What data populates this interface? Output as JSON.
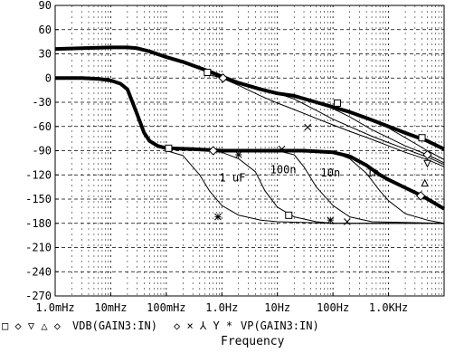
{
  "chart_data": {
    "type": "line",
    "xscale": "log",
    "xlim_hz": [
      0.001,
      10000
    ],
    "ylim": [
      -270,
      90
    ],
    "y_ticks": [
      90,
      60,
      30,
      0,
      -30,
      -60,
      -90,
      -120,
      -150,
      -180,
      -210,
      -240,
      -270
    ],
    "x_ticks": [
      {
        "value": 0.001,
        "label": "1.0mHz"
      },
      {
        "value": 0.01,
        "label": "10mHz"
      },
      {
        "value": 0.1,
        "label": "100mHz"
      },
      {
        "value": 1,
        "label": "1.0Hz"
      },
      {
        "value": 10,
        "label": "10Hz"
      },
      {
        "value": 100,
        "label": "100Hz"
      },
      {
        "value": 1000,
        "label": "1.0KHz"
      }
    ],
    "xlabel": "Frequency",
    "grid": true,
    "legend": {
      "marker_glyphs": [
        "□",
        "◇",
        "▽",
        "△",
        "◇"
      ],
      "vdb_label": "VDB(GAIN3:IN)",
      "vdb_marker_glyphs": [
        "◇",
        "×",
        "⅄",
        "Y",
        "*"
      ],
      "vp_label": "VP(GAIN3:IN)"
    },
    "annotations": [
      {
        "text": "1 uF",
        "x": 0.9,
        "y": -128
      },
      {
        "text": "100n",
        "x": 7.4,
        "y": -118
      },
      {
        "text": "10n",
        "x": 60,
        "y": -122
      },
      {
        "text": "1n",
        "x": 400,
        "y": -122
      }
    ],
    "series": [
      {
        "kind": "magnitude",
        "bold": true,
        "points": [
          [
            0.001,
            36
          ],
          [
            0.003,
            37
          ],
          [
            0.01,
            38
          ],
          [
            0.02,
            38
          ],
          [
            0.03,
            37
          ],
          [
            0.05,
            33
          ],
          [
            0.1,
            26
          ],
          [
            0.2,
            20
          ],
          [
            0.5,
            10
          ],
          [
            1,
            2
          ],
          [
            2,
            -6
          ],
          [
            5,
            -14
          ],
          [
            10,
            -19
          ],
          [
            20,
            -22
          ],
          [
            50,
            -30
          ],
          [
            100,
            -36
          ],
          [
            200,
            -42
          ],
          [
            500,
            -52
          ],
          [
            1000,
            -60
          ],
          [
            2000,
            -68
          ],
          [
            5000,
            -78
          ],
          [
            10000,
            -88
          ]
        ]
      },
      {
        "kind": "magnitude",
        "bold": false,
        "points": [
          [
            0.6,
            4
          ],
          [
            1,
            0
          ],
          [
            2,
            -9
          ],
          [
            5,
            -22
          ],
          [
            10,
            -31
          ],
          [
            20,
            -39
          ],
          [
            50,
            -50
          ],
          [
            100,
            -58
          ],
          [
            200,
            -66
          ],
          [
            500,
            -76
          ],
          [
            1000,
            -84
          ],
          [
            2000,
            -92
          ],
          [
            5000,
            -101
          ],
          [
            10000,
            -110
          ]
        ]
      },
      {
        "kind": "magnitude",
        "bold": false,
        "points": [
          [
            5,
            -15
          ],
          [
            10,
            -19
          ],
          [
            20,
            -26
          ],
          [
            50,
            -40
          ],
          [
            100,
            -51
          ],
          [
            200,
            -60
          ],
          [
            500,
            -72
          ],
          [
            1000,
            -80
          ],
          [
            2000,
            -88
          ],
          [
            5000,
            -98
          ],
          [
            10000,
            -107
          ]
        ]
      },
      {
        "kind": "magnitude",
        "bold": false,
        "points": [
          [
            20,
            -22
          ],
          [
            50,
            -30
          ],
          [
            100,
            -38
          ],
          [
            200,
            -48
          ],
          [
            500,
            -64
          ],
          [
            1000,
            -74
          ],
          [
            2000,
            -84
          ],
          [
            5000,
            -95
          ],
          [
            10000,
            -105
          ]
        ]
      },
      {
        "kind": "magnitude",
        "bold": false,
        "points": [
          [
            200,
            -42
          ],
          [
            500,
            -52
          ],
          [
            1000,
            -62
          ],
          [
            2000,
            -74
          ],
          [
            5000,
            -90
          ],
          [
            10000,
            -101
          ]
        ]
      },
      {
        "kind": "phase",
        "bold": true,
        "points": [
          [
            0.001,
            0
          ],
          [
            0.003,
            0
          ],
          [
            0.006,
            -1
          ],
          [
            0.01,
            -3
          ],
          [
            0.015,
            -7
          ],
          [
            0.02,
            -14
          ],
          [
            0.03,
            -45
          ],
          [
            0.04,
            -68
          ],
          [
            0.05,
            -78
          ],
          [
            0.07,
            -84
          ],
          [
            0.1,
            -87
          ],
          [
            0.3,
            -88
          ],
          [
            1,
            -90
          ],
          [
            3,
            -90
          ],
          [
            10,
            -90
          ],
          [
            30,
            -90
          ],
          [
            100,
            -92
          ],
          [
            200,
            -97
          ],
          [
            400,
            -108
          ],
          [
            700,
            -120
          ],
          [
            1000,
            -126
          ],
          [
            2000,
            -136
          ],
          [
            4000,
            -146
          ],
          [
            10000,
            -162
          ]
        ]
      },
      {
        "kind": "phase",
        "bold": false,
        "points": [
          [
            0.1,
            -90
          ],
          [
            0.2,
            -96
          ],
          [
            0.4,
            -120
          ],
          [
            0.6,
            -140
          ],
          [
            1,
            -158
          ],
          [
            2,
            -170
          ],
          [
            5,
            -176
          ],
          [
            10,
            -178
          ],
          [
            100,
            -180
          ],
          [
            10000,
            -180
          ]
        ]
      },
      {
        "kind": "phase",
        "bold": false,
        "points": [
          [
            0.5,
            -90
          ],
          [
            1,
            -92
          ],
          [
            2,
            -100
          ],
          [
            4,
            -116
          ],
          [
            6,
            -140
          ],
          [
            10,
            -160
          ],
          [
            20,
            -172
          ],
          [
            50,
            -178
          ],
          [
            100,
            -180
          ],
          [
            10000,
            -180
          ]
        ]
      },
      {
        "kind": "phase",
        "bold": false,
        "points": [
          [
            10,
            -90
          ],
          [
            20,
            -95
          ],
          [
            30,
            -110
          ],
          [
            50,
            -135
          ],
          [
            100,
            -158
          ],
          [
            200,
            -172
          ],
          [
            500,
            -178
          ],
          [
            10000,
            -180
          ]
        ]
      },
      {
        "kind": "phase",
        "bold": false,
        "points": [
          [
            100,
            -92
          ],
          [
            200,
            -100
          ],
          [
            400,
            -118
          ],
          [
            700,
            -140
          ],
          [
            1000,
            -152
          ],
          [
            2000,
            -168
          ],
          [
            5000,
            -176
          ],
          [
            10000,
            -180
          ]
        ]
      }
    ],
    "markers": [
      {
        "shape": "square",
        "x": 0.55,
        "y": 7
      },
      {
        "shape": "square",
        "x": 120,
        "y": -31
      },
      {
        "shape": "square",
        "x": 4000,
        "y": -74
      },
      {
        "shape": "square",
        "x": 0.11,
        "y": -87
      },
      {
        "shape": "square",
        "x": 16,
        "y": -170
      },
      {
        "shape": "diamond",
        "x": 1.05,
        "y": 0
      },
      {
        "shape": "diamond",
        "x": 5000,
        "y": -95
      },
      {
        "shape": "diamond",
        "x": 0.7,
        "y": -90
      },
      {
        "shape": "diamond",
        "x": 3800,
        "y": -146
      },
      {
        "shape": "triangle-down",
        "x": 5000,
        "y": -106
      },
      {
        "shape": "triangle-up",
        "x": 4500,
        "y": -130
      },
      {
        "shape": "x",
        "x": 12,
        "y": -88
      },
      {
        "shape": "x",
        "x": 35,
        "y": -61
      },
      {
        "shape": "x",
        "x": 180,
        "y": -178
      },
      {
        "shape": "star",
        "x": 0.85,
        "y": -172
      },
      {
        "shape": "star",
        "x": 90,
        "y": -176
      },
      {
        "shape": "star",
        "x": 2,
        "y": -95
      }
    ]
  }
}
